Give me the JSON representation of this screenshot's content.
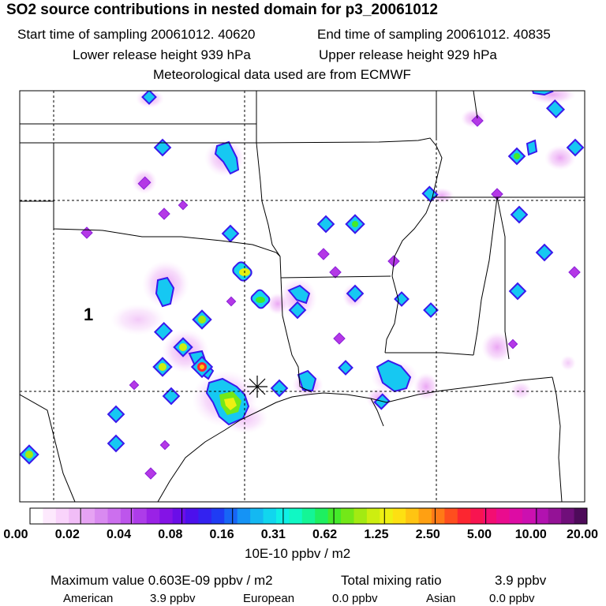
{
  "header": {
    "title": "SO2 source contributions in nested domain for p3_20061012",
    "start_label": "Start time of sampling 20061012. 40620",
    "end_label": "End time of sampling 20061012. 40835",
    "lower_label": "Lower release height  939 hPa",
    "upper_label": "Upper release height  929 hPa",
    "met_label": "Meteorological data used are from ECMWF"
  },
  "map": {
    "region_label": "1",
    "release_marker": "release-site-asterisk"
  },
  "colorbar": {
    "labels": [
      "0.00",
      "0.02",
      "0.04",
      "0.08",
      "0.16",
      "0.31",
      "0.62",
      "1.25",
      "2.50",
      "5.00",
      "10.00",
      "20.00"
    ],
    "colors": [
      "#ffffff",
      "#fde9fd",
      "#f9d4fb",
      "#f1bdf7",
      "#e6a3f3",
      "#d98af0",
      "#cc6fee",
      "#bd55ec",
      "#ad3ce9",
      "#9a22e6",
      "#8413e6",
      "#6a0ee8",
      "#4c10ec",
      "#3322f0",
      "#1f3cf4",
      "#1766f6",
      "#1593f5",
      "#14b8f2",
      "#11d6ee",
      "#0ff0e6",
      "#10f8c4",
      "#14f596",
      "#1eef60",
      "#44ea2a",
      "#73e818",
      "#a3ea12",
      "#cdee10",
      "#eef012",
      "#fde012",
      "#ffc412",
      "#ffa012",
      "#ff7a16",
      "#fe4e1e",
      "#fc2630",
      "#f81450",
      "#f30e72",
      "#ea0c8e",
      "#dd0ca4",
      "#cc10b0",
      "#b212b0",
      "#941296",
      "#700f7a",
      "#4e0b5a"
    ],
    "unit": "10E-10 ppbv / m2"
  },
  "footer": {
    "max_label": "Maximum value  0.603E-09 ppbv / m2",
    "total_label": "Total mixing ratio",
    "total_value": "3.9 ppbv",
    "american_label": "American",
    "american_value": "3.9 ppbv",
    "european_label": "European",
    "european_value": "0.0 ppbv",
    "asian_label": "Asian",
    "asian_value": "0.0 ppbv"
  }
}
